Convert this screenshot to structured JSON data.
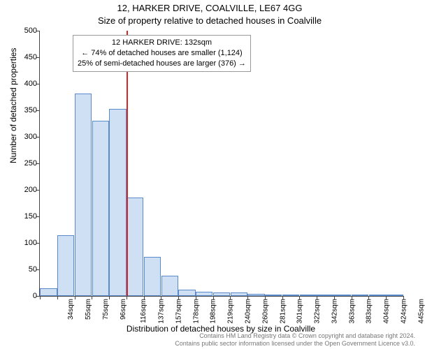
{
  "title_line1": "12, HARKER DRIVE, COALVILLE, LE67 4GG",
  "title_line2": "Size of property relative to detached houses in Coalville",
  "y_axis_label": "Number of detached properties",
  "x_axis_label": "Distribution of detached houses by size in Coalville",
  "chart": {
    "type": "histogram",
    "ylim": [
      0,
      500
    ],
    "ytick_step": 50,
    "bar_fill": "#cfe0f5",
    "bar_stroke": "#5a8ac9",
    "bar_stroke_width": 1,
    "background": "#ffffff",
    "categories": [
      "34sqm",
      "55sqm",
      "75sqm",
      "96sqm",
      "116sqm",
      "137sqm",
      "157sqm",
      "178sqm",
      "198sqm",
      "219sqm",
      "240sqm",
      "260sqm",
      "281sqm",
      "301sqm",
      "322sqm",
      "342sqm",
      "363sqm",
      "383sqm",
      "404sqm",
      "424sqm",
      "445sqm"
    ],
    "values": [
      15,
      115,
      382,
      330,
      352,
      185,
      74,
      38,
      12,
      8,
      7,
      6,
      4,
      3,
      3,
      2,
      2,
      2,
      1,
      1,
      1
    ]
  },
  "marker": {
    "position_index": 5,
    "line_color": "#d62728"
  },
  "callout": {
    "line1": "12 HARKER DRIVE: 132sqm",
    "line2": "← 74% of detached houses are smaller (1,124)",
    "line3": "25% of semi-detached houses are larger (376) →"
  },
  "footer": {
    "line1": "Contains HM Land Registry data © Crown copyright and database right 2024.",
    "line2": "Contains public sector information licensed under the Open Government Licence v3.0."
  },
  "fonts": {
    "title_size_pt": 13,
    "axis_label_size_pt": 12,
    "tick_size_pt": 11,
    "xtick_size_pt": 10,
    "callout_size_pt": 11,
    "footer_size_pt": 9
  }
}
